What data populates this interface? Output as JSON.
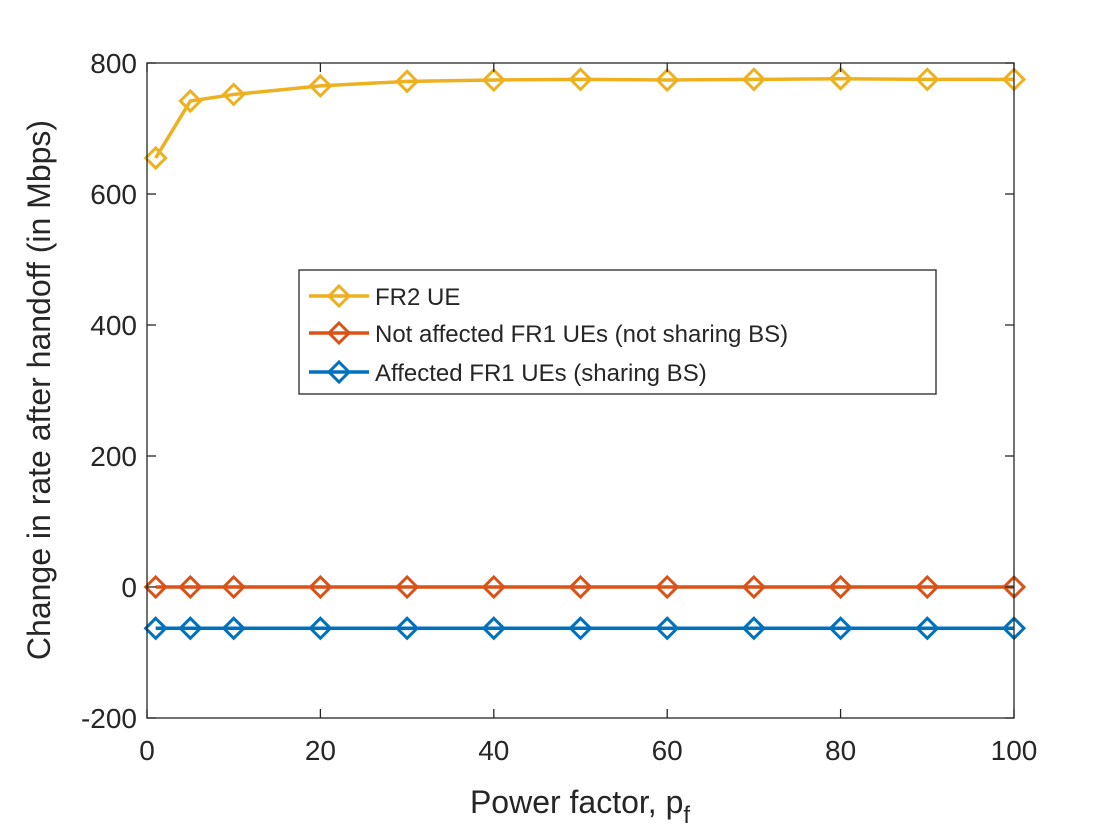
{
  "chart_data": {
    "type": "line",
    "title": "",
    "xlabel": "Power factor, p",
    "xlabel_subscript": "f",
    "ylabel": "Change in rate after handoff (in Mbps)",
    "xlim": [
      0,
      100
    ],
    "ylim": [
      -200,
      800
    ],
    "xticks": [
      0,
      20,
      40,
      60,
      80,
      100
    ],
    "yticks": [
      -200,
      0,
      200,
      400,
      600,
      800
    ],
    "grid": false,
    "legend_position": "center",
    "x": [
      1,
      5,
      10,
      20,
      30,
      40,
      50,
      60,
      70,
      80,
      90,
      100
    ],
    "series": [
      {
        "name": "FR2 UE",
        "color": "#EDB120",
        "marker": "diamond",
        "values": [
          655,
          742,
          752,
          765,
          772,
          774,
          775,
          774,
          775,
          776,
          775,
          775
        ]
      },
      {
        "name": "Not affected FR1 UEs (not sharing BS)",
        "color": "#D95319",
        "marker": "diamond",
        "values": [
          0,
          0,
          0,
          0,
          0,
          0,
          0,
          0,
          0,
          0,
          0,
          0
        ]
      },
      {
        "name": "Affected FR1 UEs (sharing BS)",
        "color": "#0072BD",
        "marker": "diamond",
        "values": [
          -63,
          -63,
          -63,
          -63,
          -63,
          -63,
          -63,
          -63,
          -63,
          -63,
          -63,
          -63
        ]
      }
    ]
  }
}
